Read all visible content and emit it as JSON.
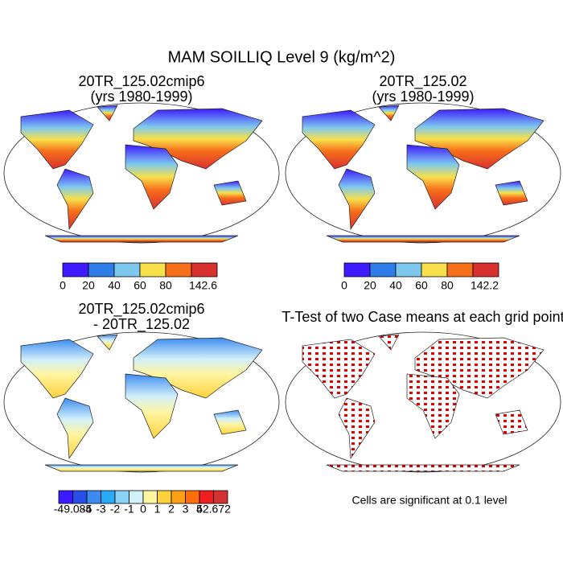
{
  "title": "MAM SOILLIQ Level 9 (kg/m^2)",
  "panels": [
    {
      "title": [
        "20TR_125.02cmip6",
        "(yrs 1980-1999)"
      ],
      "colorbar": {
        "colors": [
          "#3d1aff",
          "#2e7de8",
          "#7ec8f0",
          "#f7e04a",
          "#f76f1a",
          "#d93030"
        ],
        "labels": [
          0,
          20,
          40,
          60,
          80,
          142.6
        ]
      }
    },
    {
      "title": [
        "20TR_125.02",
        "(yrs 1980-1999)"
      ],
      "colorbar": {
        "colors": [
          "#3d1aff",
          "#2e7de8",
          "#7ec8f0",
          "#f7e04a",
          "#f76f1a",
          "#d93030"
        ],
        "labels": [
          0,
          20,
          40,
          60,
          80,
          142.2
        ]
      }
    },
    {
      "title": [
        "20TR_125.02cmip6",
        "- 20TR_125.02"
      ],
      "colorbar": {
        "colors": [
          "#3a1aff",
          "#2850e8",
          "#3c8cf0",
          "#28aaf5",
          "#8cd2f5",
          "#d2f0fa",
          "#fff5a0",
          "#ffd23c",
          "#ffa014",
          "#ff6e0a",
          "#f01e1e",
          "#d23232"
        ],
        "labels": [
          -49.085,
          -4,
          -3,
          -2,
          -1,
          0,
          1,
          2,
          3,
          4,
          52.672
        ]
      }
    },
    {
      "title": [
        "T-Test of two Case means at each grid point"
      ],
      "note": "Cells are significant at 0.1 level"
    }
  ]
}
